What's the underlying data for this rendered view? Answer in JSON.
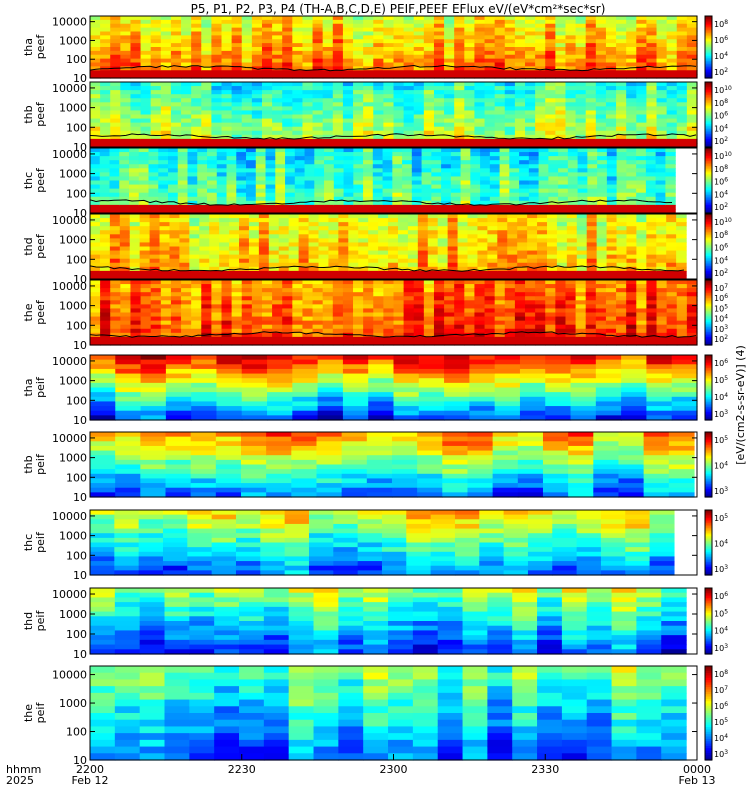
{
  "chart_data": {
    "type": "heatmap",
    "title": "P5, P1, P2, P3, P4 (TH-A,B,C,D,E) PEIF,PEEF EFlux eV/(eV*cm²*sec*sr)",
    "colorbar_label": "[eV/(cm2-s-sr-eV)] (4)",
    "xlabel_row1": "hhmm",
    "xlabel_row2": "2025",
    "x_ticks": [
      {
        "main": "2200",
        "sub": "Feb 12"
      },
      {
        "main": "2230",
        "sub": ""
      },
      {
        "main": "2300",
        "sub": ""
      },
      {
        "main": "2330",
        "sub": ""
      },
      {
        "main": "0000",
        "sub": "Feb 13"
      }
    ],
    "y_ticks": [
      "10",
      "100",
      "1000",
      "10000"
    ],
    "y_scale": "log",
    "ylim": [
      10,
      20000
    ],
    "panels": [
      {
        "probe": "tha",
        "product": "peef",
        "cb_ticks": [
          "10^2",
          "10^4",
          "10^6",
          "10^8"
        ],
        "has_sc_potential_line": true,
        "data_end_frac": 1.0
      },
      {
        "probe": "thb",
        "product": "peef",
        "cb_ticks": [
          "10^2",
          "10^4",
          "10^6",
          "10^8",
          "10^10"
        ],
        "has_sc_potential_line": true,
        "data_end_frac": 1.0
      },
      {
        "probe": "thc",
        "product": "peef",
        "cb_ticks": [
          "10^2",
          "10^4",
          "10^6",
          "10^8",
          "10^10"
        ],
        "has_sc_potential_line": true,
        "data_end_frac": 0.964
      },
      {
        "probe": "thd",
        "product": "peef",
        "cb_ticks": [
          "10^2",
          "10^4",
          "10^6",
          "10^8",
          "10^10"
        ],
        "has_sc_potential_line": true,
        "data_end_frac": 0.982
      },
      {
        "probe": "the",
        "product": "peef",
        "cb_ticks": [
          "10^2",
          "10^3",
          "10^4",
          "10^5",
          "10^6",
          "10^7"
        ],
        "has_sc_potential_line": true,
        "data_end_frac": 1.0
      },
      {
        "probe": "tha",
        "product": "peif",
        "cb_ticks": [
          "10^3",
          "10^4",
          "10^5",
          "10^6"
        ],
        "has_sc_potential_line": false,
        "data_end_frac": 1.0
      },
      {
        "probe": "thb",
        "product": "peif",
        "cb_ticks": [
          "10^3",
          "10^4",
          "10^5"
        ],
        "has_sc_potential_line": false,
        "data_end_frac": 0.995
      },
      {
        "probe": "thc",
        "product": "peif",
        "cb_ticks": [
          "10^3",
          "10^4",
          "10^5"
        ],
        "has_sc_potential_line": false,
        "data_end_frac": 0.962
      },
      {
        "probe": "thd",
        "product": "peif",
        "cb_ticks": [
          "10^3",
          "10^4",
          "10^5",
          "10^6"
        ],
        "has_sc_potential_line": false,
        "data_end_frac": 0.982
      },
      {
        "probe": "the",
        "product": "peif",
        "cb_ticks": [
          "10^3",
          "10^4",
          "10^5",
          "10^6",
          "10^7",
          "10^8"
        ],
        "has_sc_potential_line": false,
        "data_end_frac": 0.982
      }
    ]
  }
}
